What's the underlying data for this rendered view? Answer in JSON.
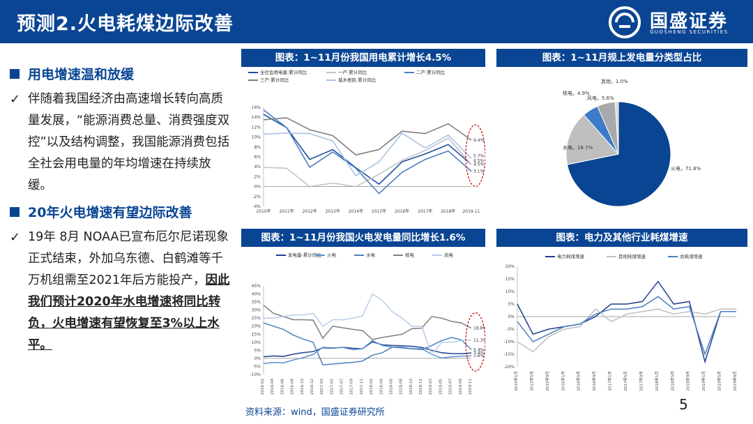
{
  "header": {
    "title": "预测2.火电耗煤边际改善",
    "logo_name": "国盛证券",
    "logo_sub": "GUOSHENG SECURITIES"
  },
  "left": {
    "sec1": "用电增速温和放缓",
    "b1": "伴随着我国经济由高速增长转向高质量发展，“能源消费总量、消费强度双控”以及结构调整，我国能源消费包括全社会用电量的年均增速在持续放缓。",
    "sec2": "20年火电增速有望边际改善",
    "b2a": "19年 8月 NOAA已宣布厄尔尼诺现象正式结束，外加乌东德、白鹤滩等千万机组需至2021年后方能投产，",
    "b2b": "因此我们预计2020年水电增速将同比转负，火电增速有望恢复至3%以上水平。"
  },
  "source": "资料来源：wind，国盛证券研究所",
  "page": "5",
  "colors": {
    "brand": "#0a4593"
  },
  "chart_data": [
    {
      "type": "line",
      "title": "图表：1~11月份我国用电累计增长4.5%",
      "x": [
        "2010年",
        "2011年",
        "2012年",
        "2013年",
        "2014年",
        "2015年",
        "2016年",
        "2017年",
        "2018年",
        "2019-11"
      ],
      "ylim": [
        -4,
        16
      ],
      "yticks": [
        "-4%",
        "-2%",
        "0%",
        "2%",
        "4%",
        "6%",
        "8%",
        "10%",
        "12%",
        "14%",
        "16%"
      ],
      "series": [
        {
          "name": "全社会用电量:累计同比",
          "color": "#1f4e9c",
          "values": [
            14.6,
            11.9,
            5.5,
            7.5,
            3.8,
            0.5,
            5.0,
            6.6,
            8.5,
            4.5
          ]
        },
        {
          "name": "一产:累计同比",
          "color": "#c4c4c4",
          "values": [
            3.9,
            3.7,
            0.0,
            0.7,
            0.0,
            2.5,
            5.3,
            7.3,
            9.8,
            4.5
          ]
        },
        {
          "name": "二产:累计同比",
          "color": "#4a7fc1",
          "values": [
            15.5,
            11.9,
            3.9,
            7.0,
            3.7,
            -1.4,
            2.9,
            5.5,
            7.2,
            3.1
          ]
        },
        {
          "name": "三产:累计同比",
          "color": "#7f7f7f",
          "values": [
            13.5,
            13.9,
            11.5,
            10.3,
            6.4,
            7.5,
            11.2,
            10.7,
            12.7,
            9.4
          ]
        },
        {
          "name": "城乡居民:累计同比",
          "color": "#a9c3e4",
          "values": [
            10.6,
            10.8,
            10.7,
            9.2,
            2.2,
            5.0,
            10.8,
            7.8,
            10.4,
            5.7
          ]
        }
      ],
      "end_labels": [
        "9.4%",
        "5.7%",
        "4.5%",
        "4.5%",
        "3.1%"
      ]
    },
    {
      "type": "pie",
      "title": "图表：1~11月规上发电量分类型占比",
      "slices": [
        {
          "label": "火电",
          "value": 71.8,
          "color": "#0a4593",
          "text": "火电，71.8%"
        },
        {
          "label": "水电",
          "value": 16.7,
          "color": "#bfbfbf",
          "text": "水电，16.7%"
        },
        {
          "label": "核电",
          "value": 4.9,
          "color": "#3d7bc8",
          "text": "核电，4.9%"
        },
        {
          "label": "风电",
          "value": 5.6,
          "color": "#a9a9a9",
          "text": "风电，5.6%"
        },
        {
          "label": "其他",
          "value": 1.0,
          "color": "#d9d9d9",
          "text": "其他，1.0%"
        }
      ]
    },
    {
      "type": "line",
      "title": "图表：1~11月份我国火电发电量同比增长1.6%",
      "x": [
        "2016-02",
        "2016-04",
        "2016-06",
        "2016-08",
        "2016-10",
        "2016-12",
        "2017-03",
        "2017-05",
        "2017-07",
        "2017-09",
        "2017-11",
        "2018-02",
        "2018-04",
        "2018-06",
        "2018-08",
        "2018-10",
        "2018-12",
        "2019-03",
        "2019-05",
        "2019-07",
        "2019-09",
        "2019-11"
      ],
      "ylim": [
        -10,
        45
      ],
      "yticks": [
        "-10%",
        "-5%",
        "0%",
        "5%",
        "10%",
        "15%",
        "20%",
        "25%",
        "30%",
        "35%",
        "40%",
        "45%"
      ],
      "series": [
        {
          "name": "发电量-累计同比",
          "color": "#1f3f8c",
          "values": [
            1,
            1.5,
            1.2,
            2.6,
            3.6,
            4.2,
            6.6,
            6.3,
            6.9,
            6.3,
            6.0,
            10.3,
            8.4,
            8.0,
            7.9,
            7.5,
            6.8,
            5.0,
            3.5,
            3.0,
            2.9,
            3.4
          ]
        },
        {
          "name": "火电",
          "color": "#5b8fd0",
          "values": [
            -3.2,
            -2.5,
            -2.8,
            -1,
            0.5,
            2.4,
            6.9,
            6.5,
            6.8,
            5.4,
            6.0,
            11.0,
            8.0,
            7.0,
            7.0,
            6.0,
            6.0,
            2.5,
            0.2,
            1.0,
            1.4,
            1.6
          ]
        },
        {
          "name": "水电",
          "color": "#4a7fc1",
          "values": [
            22,
            20,
            18,
            14.5,
            12,
            10,
            -4,
            -3.5,
            -3.0,
            -2.5,
            -1.7,
            2.0,
            3.5,
            7.0,
            6.5,
            6.0,
            5.4,
            8.0,
            11.0,
            13.0,
            11.5,
            5.4
          ]
        },
        {
          "name": "核电",
          "color": "#7f7f7f",
          "values": [
            33,
            28,
            26,
            24,
            24,
            23.8,
            12.5,
            20,
            19,
            18,
            17.3,
            11.7,
            13,
            14,
            15,
            18.5,
            18.8,
            26,
            25,
            23,
            22,
            18.8
          ]
        },
        {
          "name": "风电",
          "color": "#b7cde9",
          "values": [
            25,
            25,
            26,
            27,
            27,
            28,
            20,
            24,
            24,
            25,
            26.3,
            40,
            36,
            29,
            25,
            20,
            20,
            2,
            10,
            10,
            11,
            11.3
          ]
        }
      ],
      "end_labels": [
        "18.8%",
        "11.3%",
        "5.4%",
        "3.4%",
        "1.6%"
      ]
    },
    {
      "type": "line",
      "title": "图表：电力及其他行业耗煤增速",
      "x": [
        "2015年1月",
        "2015年5月",
        "2015年9月",
        "2016年1月",
        "2016年5月",
        "2016年9月",
        "2017年1月",
        "2017年5月",
        "2017年9月",
        "2018年1月",
        "2018年5月",
        "2018年9月",
        "2019年1月",
        "2019年5月",
        "2019年9月"
      ],
      "ylim": [
        -20,
        20
      ],
      "yticks": [
        "-20%",
        "-15%",
        "-10%",
        "-5%",
        "0%",
        "5%",
        "10%",
        "15%",
        "20%"
      ],
      "series": [
        {
          "name": "电力耗煤增速",
          "color": "#1f3f8c",
          "values": [
            5,
            -7,
            -5,
            -4,
            -3,
            0,
            5,
            5,
            6,
            14,
            5,
            6,
            -18,
            2,
            2
          ]
        },
        {
          "name": "其他耗煤增速",
          "color": "#bfbfbf",
          "values": [
            -10,
            -14,
            -8,
            -5,
            -4,
            3,
            -2,
            1,
            2,
            3,
            1,
            2,
            1,
            3,
            3
          ]
        },
        {
          "name": "总耗煤增速",
          "color": "#4a7fc1",
          "values": [
            -2,
            -10,
            -7,
            -4,
            -3,
            1,
            3,
            3,
            4,
            8,
            3,
            4,
            -15,
            2,
            2
          ]
        }
      ]
    }
  ]
}
